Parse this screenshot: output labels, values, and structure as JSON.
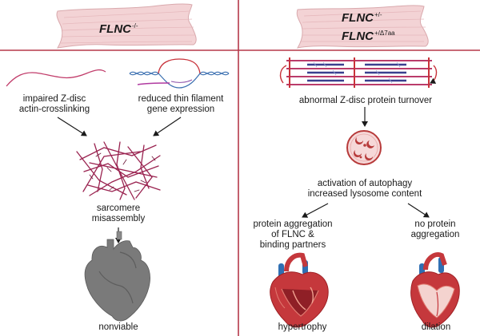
{
  "left": {
    "gene_label": "FLNC",
    "gene_superscript": "-/-",
    "mechanism_1": [
      "impaired Z-disc",
      "actin-crosslinking"
    ],
    "mechanism_2": [
      "reduced thin filament",
      "gene expression"
    ],
    "result": [
      "sarcomere",
      "misassembly"
    ],
    "outcome": "nonviable"
  },
  "right": {
    "gene_label_1": "FLNC",
    "gene_superscript_1": "+/-",
    "gene_label_2": "FLNC",
    "gene_superscript_2": "+/Δ7aa",
    "step_1": "abnormal Z-disc protein turnover",
    "step_2": [
      "activation of autophagy",
      "increased lysosome content"
    ],
    "branch_1": [
      "protein aggregation",
      "of FLNC &",
      "binding partners"
    ],
    "branch_2": [
      "no protein",
      "aggregation"
    ],
    "outcome_1": "hypertrophy",
    "outcome_2": "dilation"
  },
  "colors": {
    "divider": "#b5384a",
    "muscle_fill": "#f3d3d5",
    "muscle_stroke": "#d9a9ad",
    "fiber_magenta": "#b11f55",
    "heart_gray": "#7a7a7a",
    "heart_red": "#c5383c",
    "vessel_blue": "#2f6fb3",
    "lysosome_fill": "#f6d8d8",
    "lysosome_stroke": "#b73a3a"
  }
}
